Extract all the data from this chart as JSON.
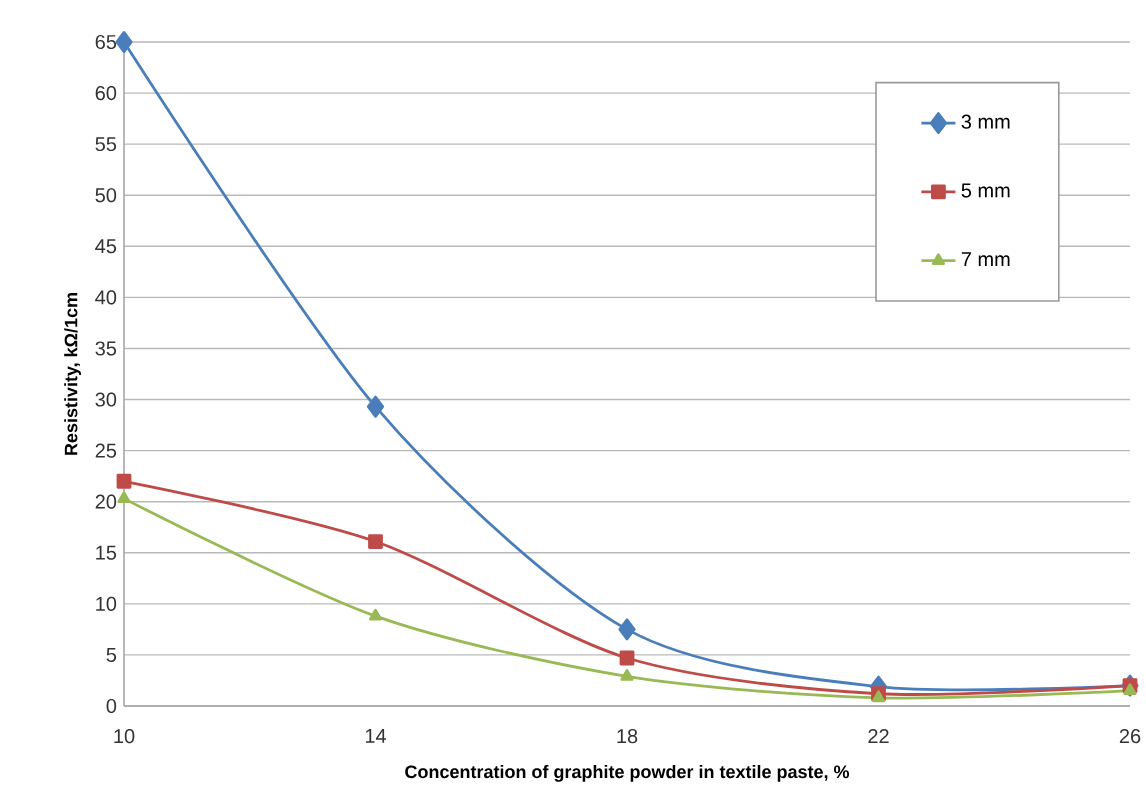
{
  "chart_data": {
    "type": "line",
    "xlabel": "Concentration of graphite powder in textile paste, %",
    "ylabel": "Resistivity, kΩ/1cm",
    "x": [
      10,
      14,
      18,
      22,
      26
    ],
    "series": [
      {
        "name": "3 mm",
        "color": "#4a7ebb",
        "marker": "diamond",
        "values": [
          65,
          29.3,
          7.5,
          1.9,
          2.0
        ]
      },
      {
        "name": "5 mm",
        "color": "#be4b48",
        "marker": "square",
        "values": [
          22,
          16.1,
          4.7,
          1.2,
          2.0
        ]
      },
      {
        "name": "7 mm",
        "color": "#98b954",
        "marker": "triangle",
        "values": [
          20.3,
          8.8,
          2.9,
          0.8,
          1.5
        ]
      }
    ],
    "xlim": [
      10,
      26
    ],
    "xticks": [
      10,
      14,
      18,
      22,
      26
    ],
    "ylim": [
      0,
      65
    ],
    "yticks": [
      0,
      5,
      10,
      15,
      20,
      25,
      30,
      35,
      40,
      45,
      50,
      55,
      60,
      65
    ],
    "grid": "y",
    "legend": "top right",
    "line_style": "solid"
  }
}
